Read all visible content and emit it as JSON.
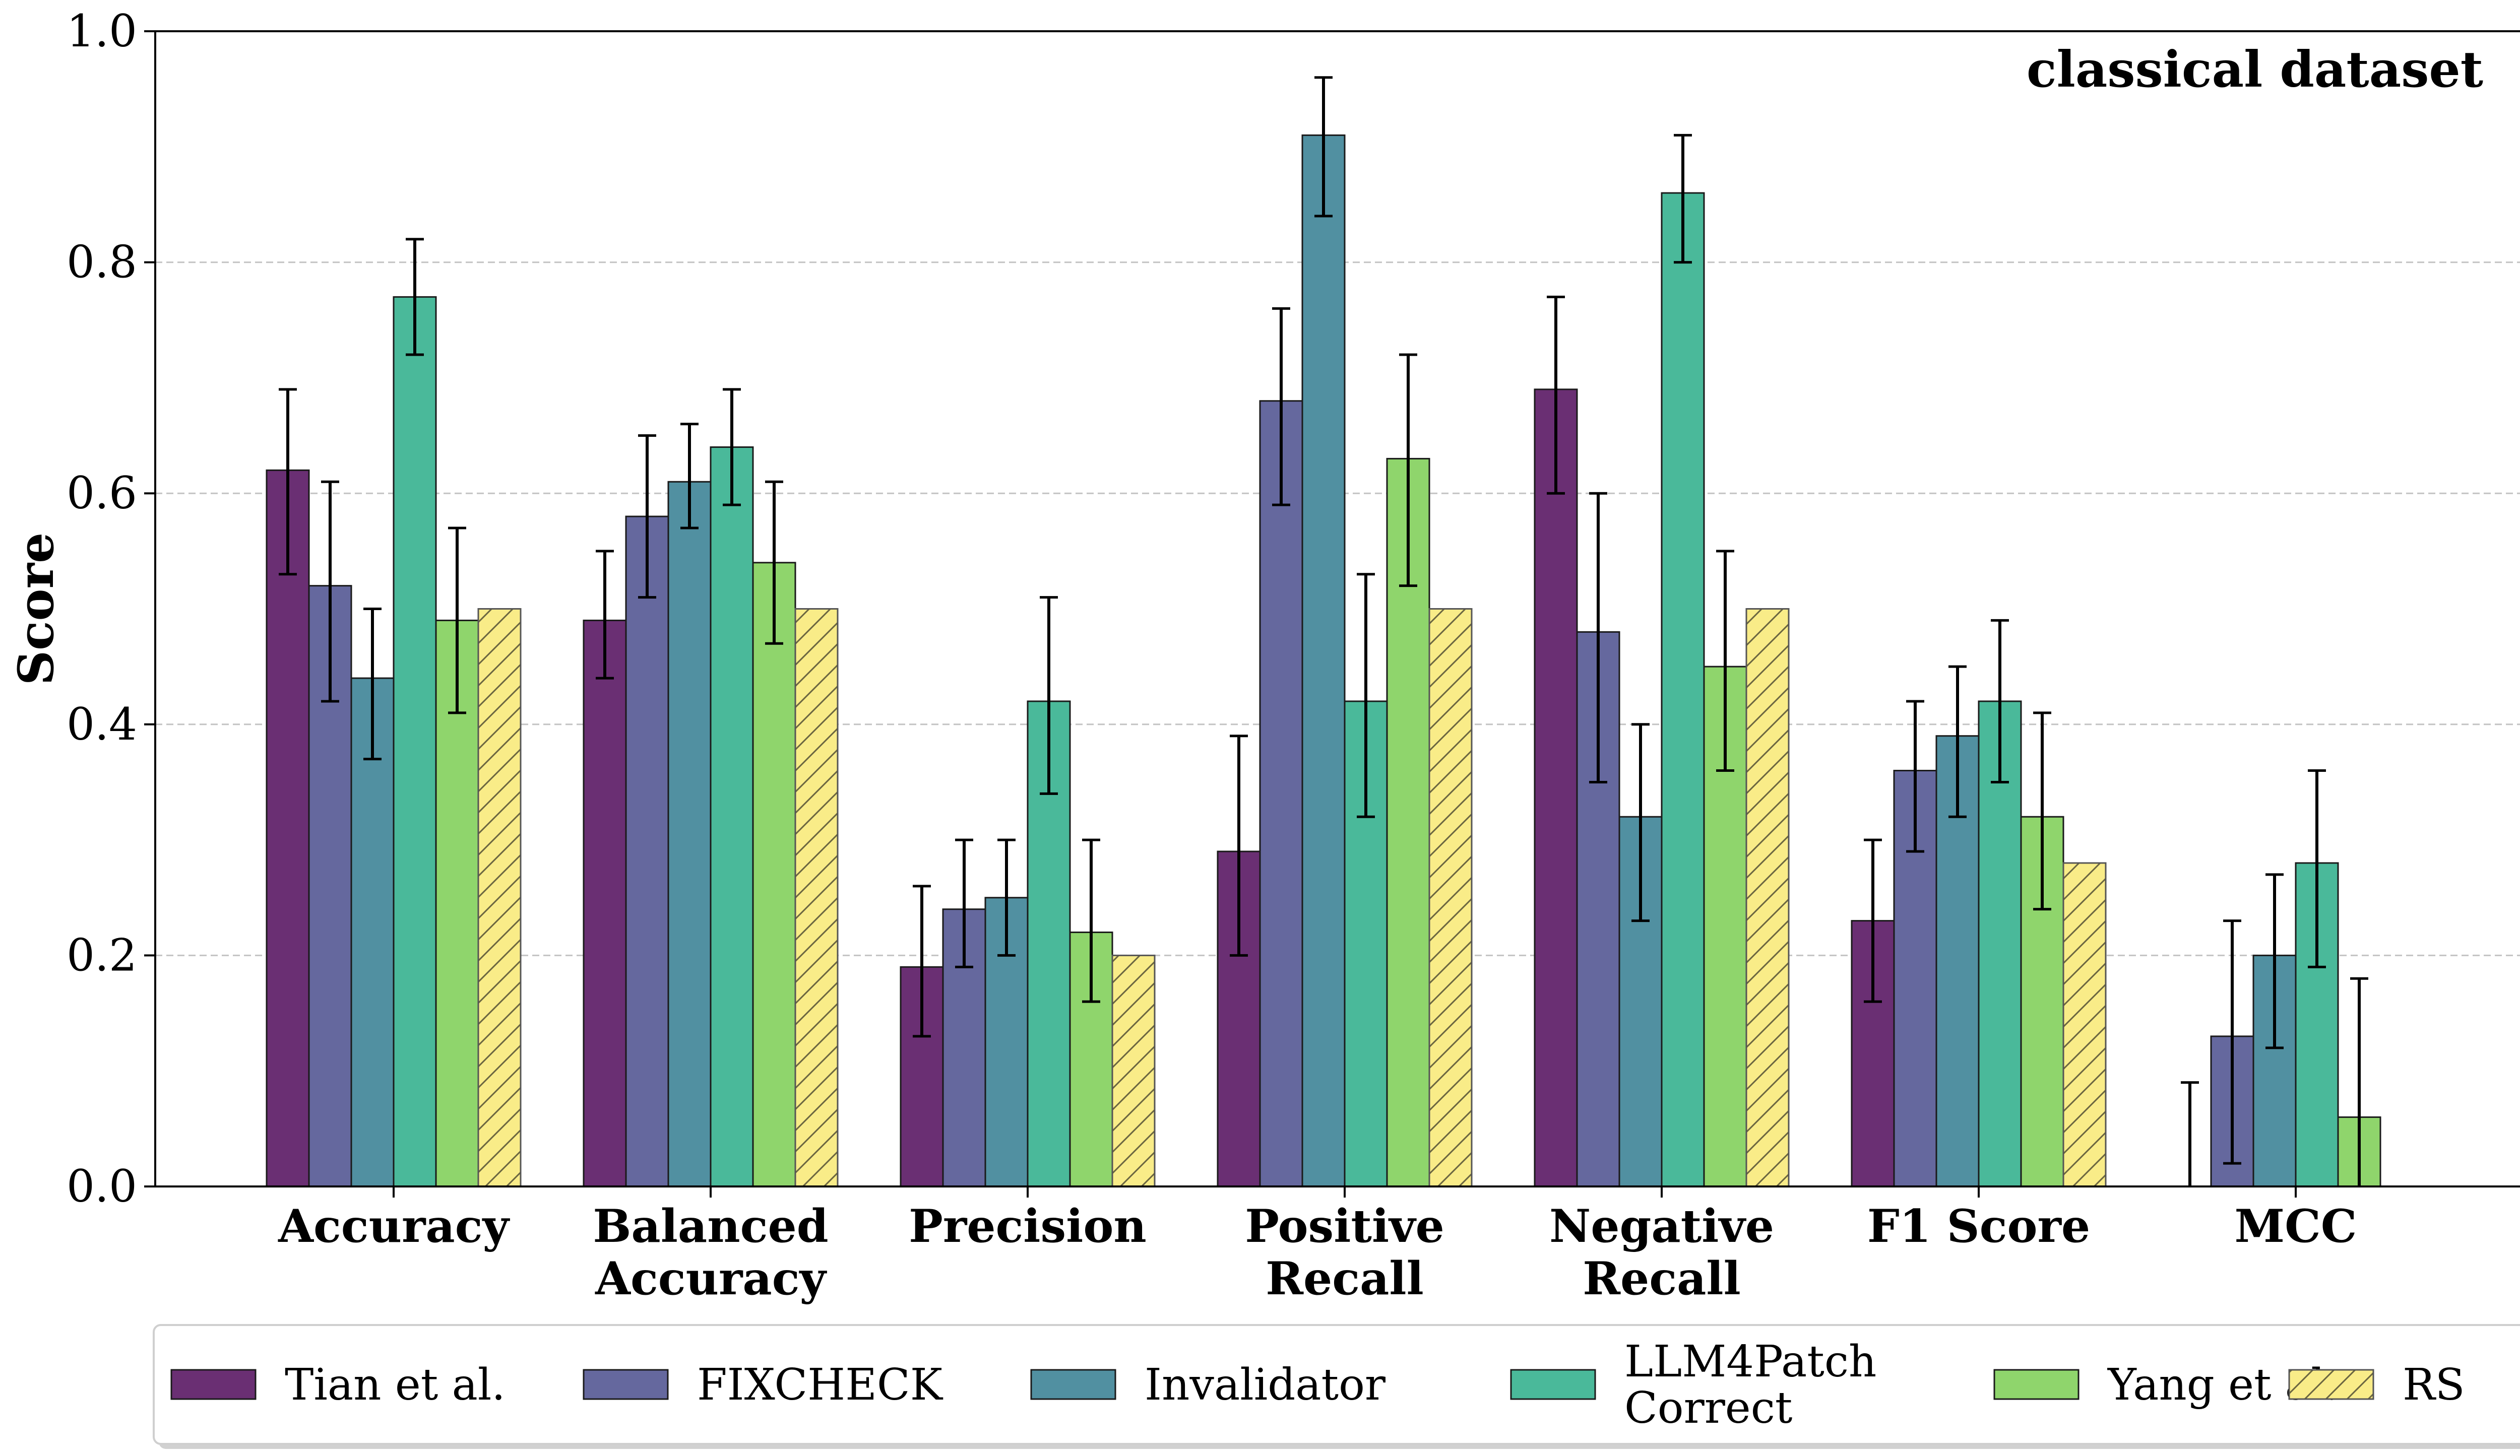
{
  "chart_data": {
    "type": "bar",
    "title": "",
    "annotation": "classical dataset",
    "ylabel": "Score",
    "xlabel": "",
    "ylim": [
      0,
      1.0
    ],
    "yticks": [
      "0.0",
      "0.2",
      "0.4",
      "0.6",
      "0.8",
      "1.0"
    ],
    "grid": "y-dashed",
    "legend_position": "bottom",
    "categories": [
      [
        "Accuracy"
      ],
      [
        "Balanced",
        "Accuracy"
      ],
      [
        "Precision"
      ],
      [
        "Positive",
        "Recall"
      ],
      [
        "Negative",
        "Recall"
      ],
      [
        "F1 Score"
      ],
      [
        "MCC"
      ]
    ],
    "series": [
      {
        "name": "Tian et al.",
        "legend_lines": [
          "Tian et al."
        ],
        "color": "#6a2f73",
        "hatch": false,
        "values": [
          0.62,
          0.49,
          0.19,
          0.29,
          0.69,
          0.23,
          0.0
        ],
        "err_low": [
          0.53,
          0.44,
          0.13,
          0.2,
          0.6,
          0.16,
          -0.09
        ],
        "err_high": [
          0.69,
          0.55,
          0.26,
          0.39,
          0.77,
          0.3,
          0.09
        ]
      },
      {
        "name": "FIXCHECK",
        "legend_lines": [
          "FIXCHECK"
        ],
        "color": "#65689e",
        "hatch": false,
        "values": [
          0.52,
          0.58,
          0.24,
          0.68,
          0.48,
          0.36,
          0.13
        ],
        "err_low": [
          0.42,
          0.51,
          0.19,
          0.59,
          0.35,
          0.29,
          0.02
        ],
        "err_high": [
          0.61,
          0.65,
          0.3,
          0.76,
          0.6,
          0.42,
          0.23
        ]
      },
      {
        "name": "Invalidator",
        "legend_lines": [
          "Invalidator"
        ],
        "color": "#5190a1",
        "hatch": false,
        "values": [
          0.44,
          0.61,
          0.25,
          0.91,
          0.32,
          0.39,
          0.2
        ],
        "err_low": [
          0.37,
          0.57,
          0.2,
          0.84,
          0.23,
          0.32,
          0.12
        ],
        "err_high": [
          0.5,
          0.66,
          0.3,
          0.96,
          0.4,
          0.45,
          0.27
        ]
      },
      {
        "name": "LLM4Patch Correct",
        "legend_lines": [
          "LLM4Patch",
          "Correct"
        ],
        "color": "#4ab99a",
        "hatch": false,
        "values": [
          0.77,
          0.64,
          0.42,
          0.42,
          0.86,
          0.42,
          0.28
        ],
        "err_low": [
          0.72,
          0.59,
          0.34,
          0.32,
          0.8,
          0.35,
          0.19
        ],
        "err_high": [
          0.82,
          0.69,
          0.51,
          0.53,
          0.91,
          0.49,
          0.36
        ]
      },
      {
        "name": "Yang et al.",
        "legend_lines": [
          "Yang et al."
        ],
        "color": "#8fd56c",
        "hatch": false,
        "values": [
          0.49,
          0.54,
          0.22,
          0.63,
          0.45,
          0.32,
          0.06
        ],
        "err_low": [
          0.41,
          0.47,
          0.16,
          0.52,
          0.36,
          0.24,
          -0.07
        ],
        "err_high": [
          0.57,
          0.61,
          0.3,
          0.72,
          0.55,
          0.41,
          0.18
        ]
      },
      {
        "name": "RS",
        "legend_lines": [
          "RS"
        ],
        "color": "#f9ec88",
        "hatch": true,
        "values": [
          0.5,
          0.5,
          0.2,
          0.5,
          0.5,
          0.28,
          0.0
        ],
        "err_low": null,
        "err_high": null
      }
    ]
  }
}
